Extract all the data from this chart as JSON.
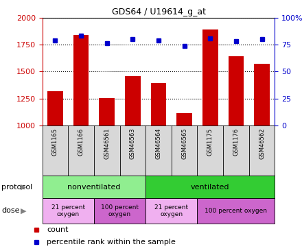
{
  "title": "GDS64 / U19614_g_at",
  "samples": [
    "GSM1165",
    "GSM1166",
    "GSM46561",
    "GSM46563",
    "GSM46564",
    "GSM46565",
    "GSM1175",
    "GSM1176",
    "GSM46562"
  ],
  "counts": [
    1320,
    1840,
    1255,
    1455,
    1395,
    1115,
    1890,
    1640,
    1570
  ],
  "percentile_ranks": [
    79,
    83,
    76,
    80,
    79,
    74,
    81,
    78,
    80
  ],
  "ylim_left": [
    1000,
    2000
  ],
  "ylim_right": [
    0,
    100
  ],
  "yticks_left": [
    1000,
    1250,
    1500,
    1750,
    2000
  ],
  "yticks_right": [
    0,
    25,
    50,
    75,
    100
  ],
  "bar_color": "#cc0000",
  "dot_color": "#0000cc",
  "protocol_groups": [
    {
      "label": "nonventilated",
      "start": 0,
      "end": 4,
      "color": "#90ee90"
    },
    {
      "label": "ventilated",
      "start": 4,
      "end": 9,
      "color": "#33cc33"
    }
  ],
  "dose_groups": [
    {
      "label": "21 percent\noxygen",
      "start": 0,
      "end": 2,
      "color": "#f0b0f0"
    },
    {
      "label": "100 percent\noxygen",
      "start": 2,
      "end": 4,
      "color": "#cc66cc"
    },
    {
      "label": "21 percent\noxygen",
      "start": 4,
      "end": 6,
      "color": "#f0b0f0"
    },
    {
      "label": "100 percent oxygen",
      "start": 6,
      "end": 9,
      "color": "#cc66cc"
    }
  ],
  "protocol_label": "protocol",
  "dose_label": "dose",
  "legend_count": "count",
  "legend_percentile": "percentile rank within the sample",
  "left_axis_color": "#cc0000",
  "right_axis_color": "#0000cc",
  "bg_color": "#ffffff"
}
